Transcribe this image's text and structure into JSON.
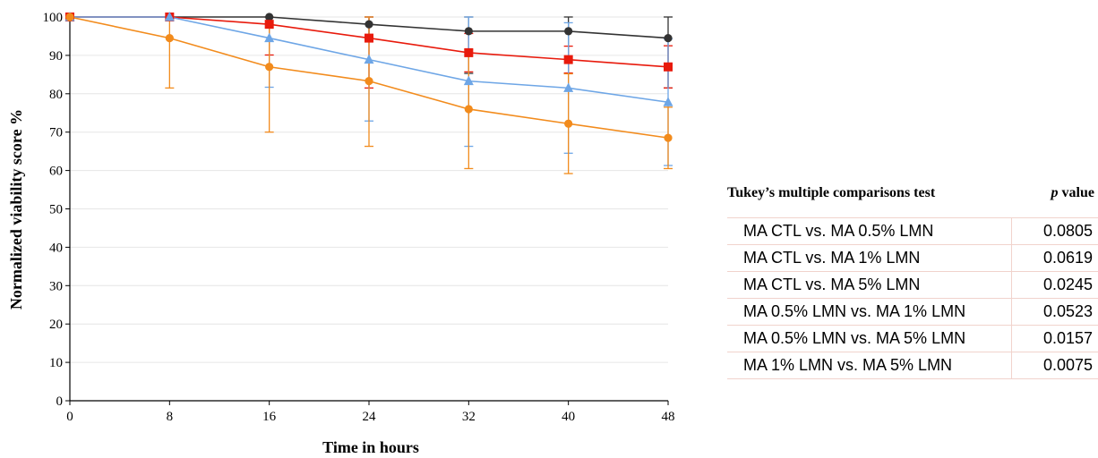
{
  "chart_data": {
    "type": "line",
    "xlabel": "Time in hours",
    "ylabel": "Normalized viability score %",
    "x": [
      0,
      8,
      16,
      24,
      32,
      40,
      48
    ],
    "xlim": [
      0,
      48
    ],
    "ylim": [
      0,
      100
    ],
    "xticks": [
      "0",
      "8",
      "16",
      "24",
      "32",
      "40",
      "48"
    ],
    "yticks": [
      "0",
      "10",
      "20",
      "30",
      "40",
      "50",
      "60",
      "70",
      "80",
      "90",
      "100"
    ],
    "grid": "horizontal",
    "legend_position": "top-right",
    "series": [
      {
        "name": "MA 5% LMN",
        "color": "#f28b1c",
        "marker": "circle",
        "values": [
          100,
          94.5,
          87,
          83.3,
          76,
          72.2,
          68.5
        ],
        "error": [
          0,
          13,
          17,
          17,
          15.5,
          13,
          8
        ]
      },
      {
        "name": "MA 1% LMN",
        "color": "#6ea6e6",
        "marker": "triangle",
        "values": [
          100,
          100,
          94.5,
          88.9,
          83.3,
          81.5,
          77.8
        ],
        "error": [
          0,
          0,
          12.8,
          16,
          17,
          17,
          16.5
        ]
      },
      {
        "name": "MA 0.5% LMN",
        "color": "#e81a0c",
        "marker": "square",
        "values": [
          100,
          100,
          98.1,
          94.5,
          90.7,
          88.9,
          87
        ],
        "error": [
          0,
          0,
          8,
          13,
          5,
          3.5,
          5.5
        ]
      },
      {
        "name": "MA CTL",
        "color": "#333333",
        "marker": "circle",
        "values": [
          100,
          100,
          100,
          98.1,
          96.3,
          96.3,
          94.5
        ],
        "error": [
          0,
          0,
          0,
          4,
          11,
          11,
          13
        ]
      }
    ]
  },
  "stats_table": {
    "header_test": "Tukey’s multiple comparisons test",
    "header_p_italic": "p",
    "header_p_rest": " value",
    "rows": [
      {
        "comparison": "MA CTL vs. MA 0.5% LMN",
        "p": "0.0805"
      },
      {
        "comparison": "MA CTL vs. MA 1% LMN",
        "p": "0.0619"
      },
      {
        "comparison": "MA CTL vs. MA 5% LMN",
        "p": "0.0245"
      },
      {
        "comparison": "MA 0.5% LMN vs. MA 1% LMN",
        "p": "0.0523"
      },
      {
        "comparison": "MA 0.5% LMN vs. MA 5% LMN",
        "p": "0.0157"
      },
      {
        "comparison": "MA 1% LMN vs. MA 5% LMN",
        "p": "0.0075"
      }
    ]
  }
}
